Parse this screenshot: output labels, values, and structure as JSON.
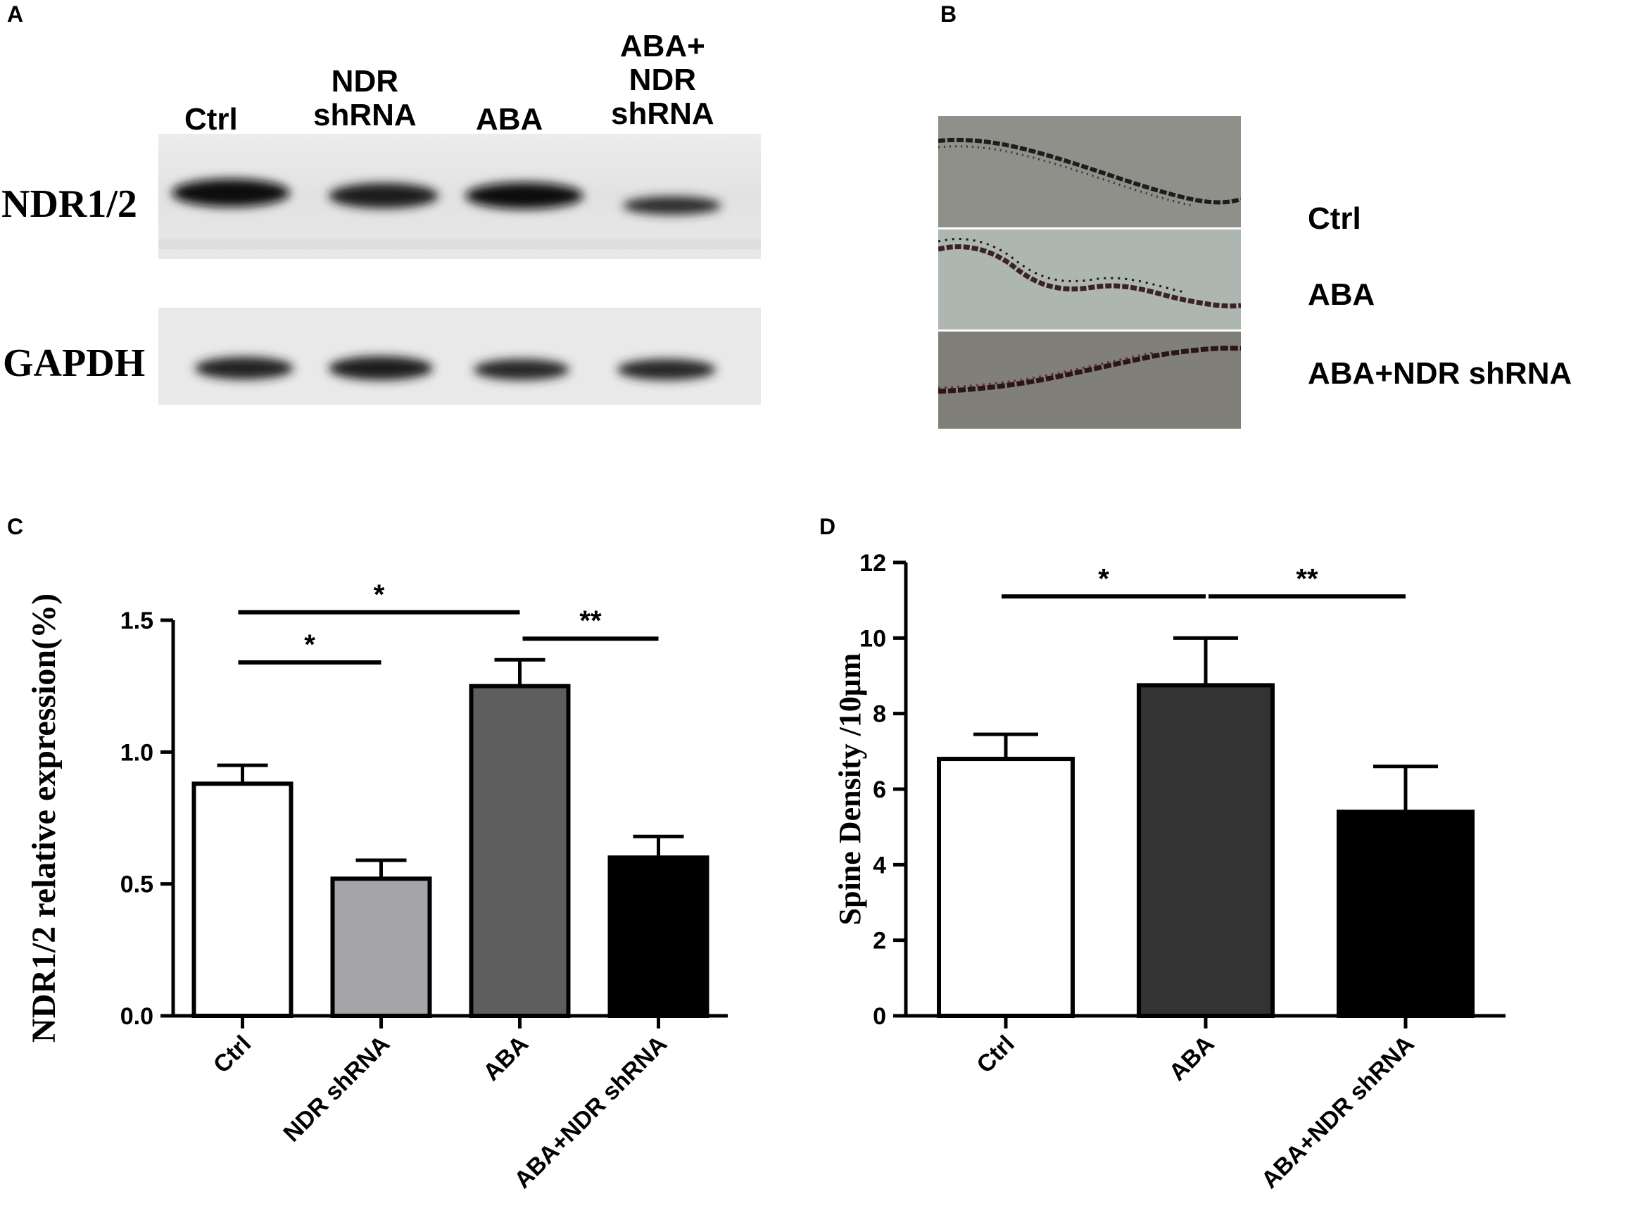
{
  "panels": {
    "a": {
      "label": "A",
      "lanes": [
        {
          "line1": "Ctrl",
          "line2": "",
          "line3": ""
        },
        {
          "line1": "NDR",
          "line2": "shRNA",
          "line3": ""
        },
        {
          "line1": "ABA",
          "line2": "",
          "line3": ""
        },
        {
          "line1": "ABA+",
          "line2": "NDR",
          "line3": "shRNA"
        }
      ],
      "rows": [
        "NDR1/2",
        "GAPDH"
      ],
      "band_intensity": {
        "NDR1/2": [
          1.0,
          0.82,
          0.96,
          0.62
        ],
        "GAPDH": [
          0.86,
          0.9,
          0.84,
          0.84
        ]
      }
    },
    "b": {
      "label": "B",
      "images": [
        "Ctrl",
        "ABA",
        "ABA+NDR shRNA"
      ]
    },
    "c": {
      "label": "C"
    },
    "d": {
      "label": "D"
    }
  },
  "chart_data": [
    {
      "type": "bar",
      "panel": "C",
      "categories": [
        "Ctrl",
        "NDR shRNA",
        "ABA",
        "ABA+NDR shRNA"
      ],
      "values": [
        0.88,
        0.52,
        1.25,
        0.6
      ],
      "errors": [
        0.07,
        0.07,
        0.1,
        0.08
      ],
      "colors": [
        "#ffffff",
        "#a5a5a9",
        "#5e5e5e",
        "#000000"
      ],
      "ylabel": "NDR1/2 relative expression(%)",
      "ylim": [
        0,
        1.5
      ],
      "yticks": [
        0.0,
        0.5,
        1.0,
        1.5
      ],
      "ytick_labels": [
        "0.0",
        "0.5",
        "1.0",
        "1.5"
      ],
      "grid": false,
      "significance": [
        {
          "from": 0,
          "to": 2,
          "label": "*",
          "y": 1.53
        },
        {
          "from": 0,
          "to": 1,
          "label": "*",
          "y": 1.34
        },
        {
          "from": 2,
          "to": 3,
          "label": "**",
          "y": 1.43
        }
      ]
    },
    {
      "type": "bar",
      "panel": "D",
      "categories": [
        "Ctrl",
        "ABA",
        "ABA+NDR shRNA"
      ],
      "values": [
        6.8,
        8.75,
        5.4
      ],
      "errors": [
        0.65,
        1.25,
        1.2
      ],
      "colors": [
        "#ffffff",
        "#333333",
        "#000000"
      ],
      "ylabel": "Spine Density /10μm",
      "ylim": [
        0,
        12
      ],
      "yticks": [
        0,
        2,
        4,
        6,
        8,
        10,
        12
      ],
      "ytick_labels": [
        "0",
        "2",
        "4",
        "6",
        "8",
        "10",
        "12"
      ],
      "grid": false,
      "significance": [
        {
          "from": 0,
          "to": 1,
          "label": "*",
          "y": 11.1
        },
        {
          "from": 1,
          "to": 2,
          "label": "**",
          "y": 11.1
        }
      ]
    }
  ]
}
